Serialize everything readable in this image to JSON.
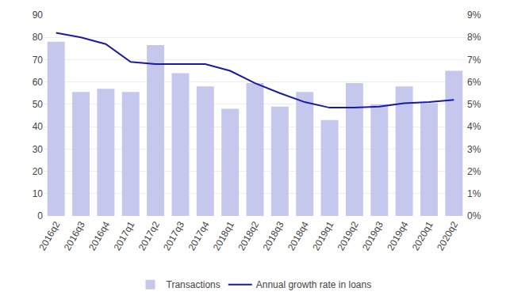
{
  "chart_data": {
    "type": "bar",
    "categories": [
      "2016q2",
      "2016q3",
      "2016q4",
      "2017q1",
      "2017q2",
      "2017q3",
      "2017q4",
      "2018q1",
      "2018q2",
      "2018q3",
      "2018q4",
      "2019q1",
      "2019q2",
      "2019q3",
      "2019q4",
      "2020q1",
      "2020q2"
    ],
    "series": [
      {
        "name": "Transactions",
        "type": "bar",
        "color": "#c5c8ec",
        "values": [
          78,
          55.5,
          57,
          55.5,
          76.5,
          64,
          58,
          48,
          59.5,
          49,
          55.5,
          43,
          59.5,
          50,
          58,
          50.5,
          65
        ]
      },
      {
        "name": "Annual growth rate in loans",
        "type": "line",
        "color": "#1a1aaa",
        "axis": "y2",
        "values": [
          8.2,
          8.0,
          7.7,
          6.9,
          6.8,
          6.8,
          6.8,
          6.5,
          5.95,
          5.5,
          5.1,
          4.85,
          4.85,
          4.9,
          5.05,
          5.1,
          5.2
        ]
      }
    ],
    "ylim": [
      0,
      90
    ],
    "yticks": [
      0,
      10,
      20,
      30,
      40,
      50,
      60,
      70,
      80,
      90
    ],
    "y2lim": [
      0,
      9
    ],
    "y2ticks": [
      {
        "value": 0,
        "label": "0%"
      },
      {
        "value": 1,
        "label": "1%"
      },
      {
        "value": 2,
        "label": "2%"
      },
      {
        "value": 3,
        "label": "3%"
      },
      {
        "value": 4,
        "label": "4%"
      },
      {
        "value": 5,
        "label": "5%"
      },
      {
        "value": 6,
        "label": "6%"
      },
      {
        "value": 7,
        "label": "7%"
      },
      {
        "value": 8,
        "label": "8%"
      },
      {
        "value": 9,
        "label": "9%"
      }
    ],
    "grid": true,
    "legend": "bottom"
  }
}
